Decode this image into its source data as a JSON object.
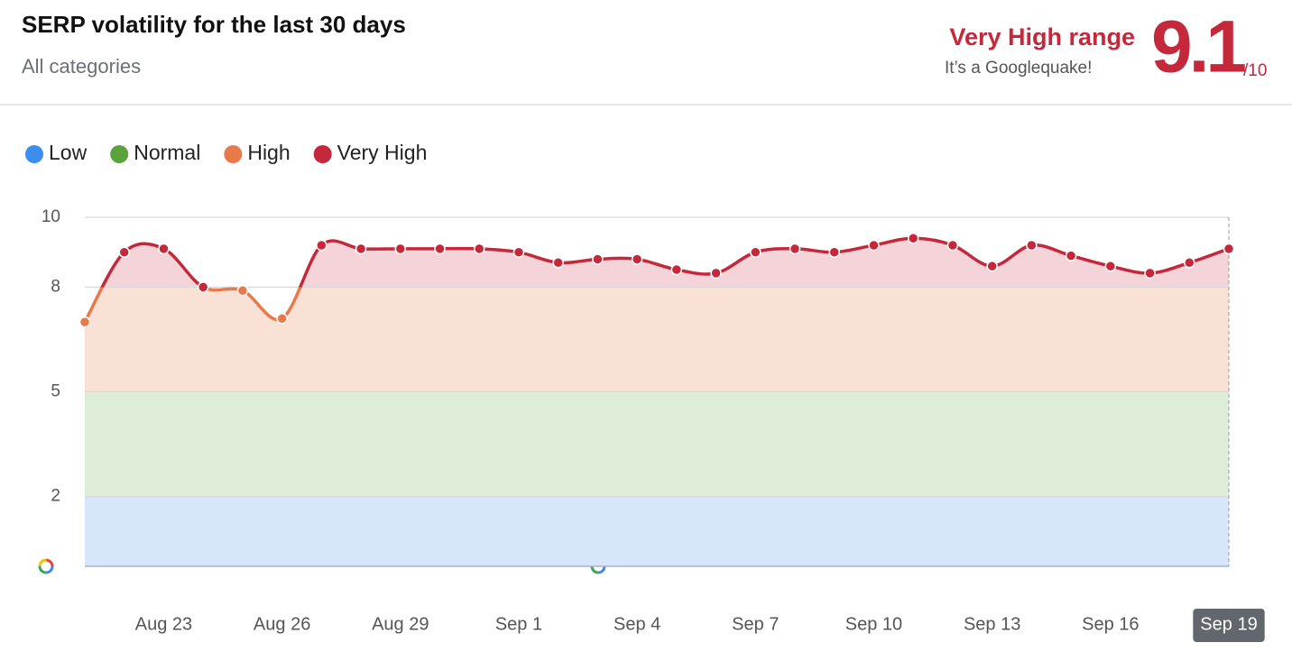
{
  "header": {
    "title": "SERP volatility for the last 30 days",
    "subtitle": "All categories",
    "range_label": "Very High range",
    "range_note": "It’s a Googlequake!",
    "score": 9.1,
    "score_max": "/10"
  },
  "chart_data": {
    "type": "line",
    "categories": [
      null,
      null,
      "Aug 23",
      null,
      null,
      "Aug 26",
      null,
      null,
      "Aug 29",
      null,
      null,
      "Sep 1",
      null,
      null,
      "Sep 4",
      null,
      null,
      "Sep 7",
      null,
      null,
      "Sep 10",
      null,
      null,
      "Sep 13",
      null,
      null,
      "Sep 16",
      null,
      null,
      "Sep 19"
    ],
    "values": [
      7.0,
      9.0,
      9.1,
      8.0,
      7.9,
      7.1,
      9.2,
      9.1,
      9.1,
      9.1,
      9.1,
      9.0,
      8.7,
      8.8,
      8.8,
      8.5,
      8.4,
      9.0,
      9.1,
      9.0,
      9.2,
      9.4,
      9.2,
      8.6,
      9.2,
      8.9,
      8.6,
      8.4,
      8.7,
      9.1
    ],
    "bands": [
      {
        "name": "Low",
        "color": "#3b8ef0",
        "fill": "#d7e6fb",
        "range": [
          0,
          2
        ]
      },
      {
        "name": "Normal",
        "color": "#5aa33c",
        "fill": "#deedd8",
        "range": [
          2,
          5
        ]
      },
      {
        "name": "High",
        "color": "#e8794a",
        "fill": "#fae1d6",
        "range": [
          5,
          8
        ]
      },
      {
        "name": "Very High",
        "color": "#c4283a",
        "fill": "#f4d4d9",
        "range": [
          8,
          10
        ]
      }
    ],
    "ylim": [
      0,
      10
    ],
    "yticks": [
      2,
      5,
      8,
      10
    ],
    "grid": true
  }
}
